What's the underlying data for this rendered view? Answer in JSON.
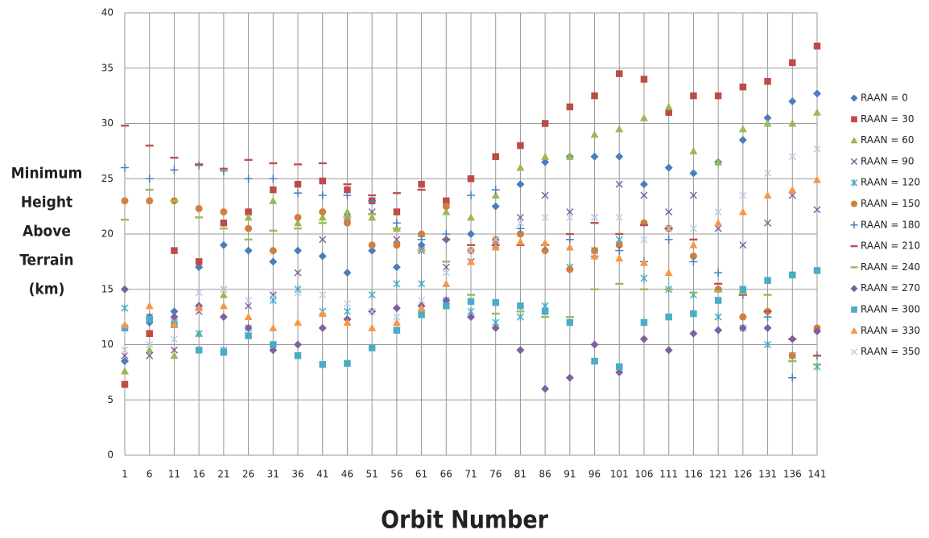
{
  "chart_data": {
    "type": "scatter",
    "ylabel": [
      "Minimum",
      "Height",
      "Above",
      "Terrain",
      "(km)"
    ],
    "xlabel": "Orbit Number",
    "xlim": [
      1,
      141
    ],
    "xticks": [
      1,
      6,
      11,
      16,
      21,
      26,
      31,
      36,
      41,
      46,
      51,
      56,
      61,
      66,
      71,
      76,
      81,
      86,
      91,
      96,
      101,
      106,
      111,
      116,
      121,
      126,
      131,
      136,
      141
    ],
    "ylim": [
      0,
      40
    ],
    "yticks": [
      0,
      5,
      10,
      15,
      20,
      25,
      30,
      35,
      40
    ],
    "grid": true,
    "legend": "right",
    "x": [
      1,
      6,
      11,
      16,
      21,
      26,
      31,
      36,
      41,
      46,
      51,
      56,
      61,
      66,
      71,
      76,
      81,
      86,
      91,
      96,
      101,
      106,
      111,
      116,
      121,
      126,
      131,
      136,
      141
    ],
    "series": [
      {
        "name": "RAAN = 0",
        "color": "#4a7ebb",
        "marker": "diamond",
        "values": [
          8.5,
          12,
          13,
          17,
          19,
          18.5,
          17.5,
          18.5,
          18,
          16.5,
          18.5,
          17,
          19,
          19.5,
          20,
          22.5,
          24.5,
          26.5,
          27,
          27,
          27,
          24.5,
          26,
          25.5,
          26.5,
          28.5,
          30.5,
          32,
          32.7
        ]
      },
      {
        "name": "RAAN = 30",
        "color": "#be4b48",
        "marker": "square",
        "values": [
          6.4,
          11,
          18.5,
          17.5,
          21,
          22,
          24,
          24.5,
          24.8,
          24,
          23,
          22,
          24.5,
          23,
          25,
          27,
          28,
          30,
          31.5,
          32.5,
          34.5,
          34,
          31,
          32.5,
          32.5,
          33.3,
          33.8,
          35.5,
          37
        ]
      },
      {
        "name": "RAAN = 60",
        "color": "#98b954",
        "marker": "triangle",
        "values": [
          7.6,
          9.5,
          9,
          11,
          14.5,
          21.5,
          23,
          21,
          21.5,
          22,
          21.5,
          20.5,
          20,
          22,
          21.5,
          23.5,
          26,
          27,
          27,
          29,
          29.5,
          30.5,
          31.5,
          27.5,
          26.5,
          29.5,
          30,
          30,
          31
        ]
      },
      {
        "name": "RAAN = 90",
        "color": "#7d60a0",
        "marker": "x",
        "values": [
          9,
          9,
          9.5,
          13,
          15,
          13.5,
          14.5,
          16.5,
          19.5,
          21.5,
          22,
          19.5,
          18.5,
          17,
          17.5,
          19,
          21.5,
          23.5,
          22,
          21.5,
          24.5,
          23.5,
          22,
          23.5,
          20.5,
          19,
          21,
          23.5,
          22.2
        ]
      },
      {
        "name": "RAAN = 120",
        "color": "#46aac5",
        "marker": "star",
        "values": [
          13.3,
          12.5,
          12,
          11,
          9.5,
          11.5,
          14,
          15,
          13,
          13,
          14.5,
          15.5,
          15.5,
          14,
          13,
          12,
          12.5,
          13.5,
          17,
          18.5,
          19.5,
          16,
          15,
          14.5,
          12.5,
          11.5,
          10,
          9,
          8
        ]
      },
      {
        "name": "RAAN = 150",
        "color": "#d0803c",
        "marker": "circle",
        "values": [
          23,
          23,
          23,
          22.3,
          22,
          20.5,
          18.5,
          21.5,
          22,
          21,
          19,
          19,
          20,
          22.5,
          18.5,
          19.5,
          20,
          18.5,
          16.8,
          18.5,
          19,
          21,
          20.5,
          18,
          15,
          12.5,
          13,
          9,
          11.5
        ]
      },
      {
        "name": "RAAN = 180",
        "color": "#4a7ebb",
        "marker": "plus",
        "values": [
          26,
          25,
          25.8,
          26.2,
          25.7,
          25,
          25,
          23.7,
          23.5,
          23.5,
          23,
          21,
          19.5,
          20,
          23.5,
          24,
          20.5,
          19,
          19.5,
          18,
          18.5,
          17.5,
          19.5,
          17.5,
          16.5,
          14.5,
          12.5,
          7,
          9
        ]
      },
      {
        "name": "RAAN = 210",
        "color": "#c0504d",
        "marker": "dash",
        "values": [
          29.8,
          28,
          26.9,
          26.3,
          25.9,
          26.7,
          26.4,
          26.3,
          26.4,
          24.5,
          23.5,
          23.7,
          24,
          19.5,
          19,
          19,
          19,
          19,
          20,
          21,
          20,
          20.8,
          20.5,
          19.5,
          15.5,
          14.5,
          13,
          10.5,
          9
        ]
      },
      {
        "name": "RAAN = 240",
        "color": "#9bbb59",
        "marker": "dash",
        "values": [
          21.3,
          24,
          23,
          21.5,
          20.5,
          19.5,
          20.3,
          20.5,
          21,
          21.5,
          21.8,
          20.5,
          18.5,
          17.5,
          14.5,
          12.8,
          13,
          12.5,
          12.5,
          15,
          15.5,
          15,
          15,
          14.7,
          14.8,
          14.6,
          14.5,
          8.5,
          8.2
        ]
      },
      {
        "name": "RAAN = 270",
        "color": "#7e5fa0",
        "marker": "diamond",
        "values": [
          15,
          12.5,
          12.5,
          13.5,
          12.5,
          11.5,
          9.5,
          10,
          11.5,
          12.3,
          13,
          13.3,
          13.5,
          14,
          12.5,
          11.5,
          9.5,
          6,
          7,
          10,
          7.5,
          10.5,
          9.5,
          11,
          11.3,
          11.5,
          11.5,
          10.5,
          11.2
        ]
      },
      {
        "name": "RAAN = 300",
        "color": "#4bacc6",
        "marker": "square",
        "values": [
          11.5,
          12.3,
          11.8,
          9.5,
          9.3,
          10.8,
          10,
          9,
          8.2,
          8.3,
          9.7,
          11.3,
          12.7,
          13.5,
          13.9,
          13.8,
          13.5,
          13,
          12,
          8.5,
          8,
          12,
          12.5,
          12.8,
          14,
          15,
          15.8,
          16.3,
          16.7
        ]
      },
      {
        "name": "RAAN = 330",
        "color": "#f79646",
        "marker": "triangle",
        "values": [
          11.8,
          13.5,
          11.8,
          13.3,
          13.5,
          12.5,
          11.5,
          12,
          12.8,
          12,
          11.5,
          12,
          13.3,
          15.5,
          17.5,
          18.8,
          19.3,
          19.2,
          18.8,
          18,
          17.8,
          17.4,
          16.5,
          19,
          21,
          22,
          23.5,
          24,
          24.9
        ]
      },
      {
        "name": "RAAN = 350",
        "color": "#b9cde5",
        "marker": "x",
        "values": [
          9.5,
          10,
          10.5,
          14.7,
          15,
          14,
          14.3,
          14.7,
          14.5,
          13.7,
          13,
          12.5,
          14,
          16.5,
          18.5,
          19.5,
          21,
          21.5,
          21.5,
          21.5,
          21.5,
          19.5,
          20.5,
          20.5,
          22,
          23.5,
          25.5,
          27,
          27.7
        ]
      }
    ]
  }
}
